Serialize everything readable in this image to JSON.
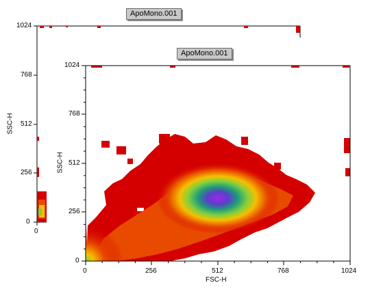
{
  "chart_data": [
    {
      "type": "heatmap",
      "title": "ApoMono.001",
      "xlabel": "",
      "ylabel": "SSC-H",
      "xlim": [
        0,
        1024
      ],
      "ylim": [
        0,
        1024
      ],
      "y_ticks": [
        "0",
        "256",
        "512",
        "768",
        "1024"
      ],
      "x_ticks": [
        "0"
      ],
      "partially_hidden": true,
      "colors": [
        "#d40000",
        "#e84a00",
        "#f5c000",
        "#7fd040",
        "#1e9a7a",
        "#9a28e8"
      ]
    },
    {
      "type": "heatmap",
      "title": "ApoMono.001",
      "xlabel": "FSC-H",
      "ylabel": "SSC-H",
      "xlim": [
        0,
        1024
      ],
      "ylim": [
        0,
        1024
      ],
      "x_ticks": [
        "0",
        "256",
        "512",
        "768",
        "1024"
      ],
      "y_ticks": [
        "0",
        "256",
        "512",
        "768",
        "1024"
      ],
      "density_peak": {
        "x": 512,
        "y": 230
      },
      "colors": [
        "#d40000",
        "#e84a00",
        "#f5c000",
        "#7fd040",
        "#1e9a7a",
        "#9a28e8"
      ]
    }
  ]
}
